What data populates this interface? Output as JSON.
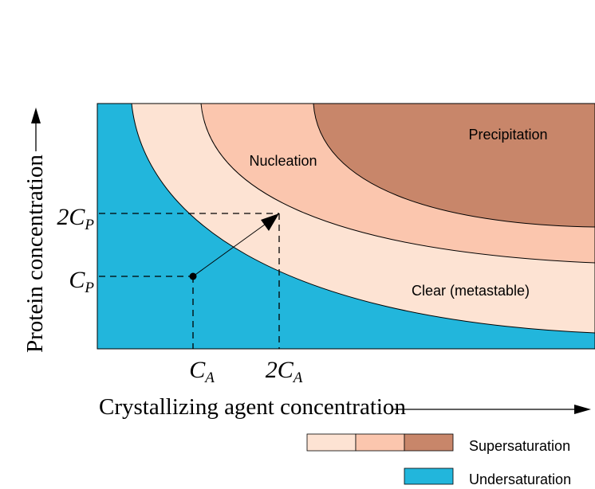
{
  "colors": {
    "undersaturation": "#22b6dc",
    "clear": "#fde3d3",
    "nucleation": "#fbc6ae",
    "precipitation": "#c8866a",
    "outline": "#000000"
  },
  "regions": {
    "precipitation": "Precipitation",
    "nucleation": "Nucleation",
    "clear": "Clear (metastable)"
  },
  "axes": {
    "x_label": "Crystallizing agent concentration",
    "y_label": "Protein concentration",
    "x_ticks": [
      {
        "main": "C",
        "sub": "A"
      },
      {
        "main": "2C",
        "sub": "A"
      }
    ],
    "y_ticks": [
      {
        "main": "2C",
        "sub": "P"
      },
      {
        "main": "C",
        "sub": "P"
      }
    ]
  },
  "legend": {
    "supersaturation": "Supersaturation",
    "undersaturation": "Undersaturation"
  }
}
